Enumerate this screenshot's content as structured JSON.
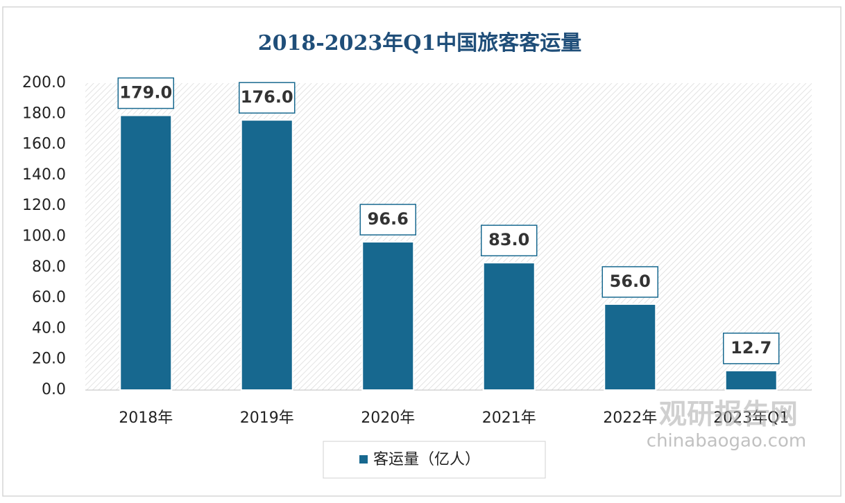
{
  "chart_data": {
    "type": "bar",
    "title": "2018-2023年Q1中国旅客客运量",
    "categories": [
      "2018年",
      "2019年",
      "2020年",
      "2021年",
      "2022年",
      "2023年Q1"
    ],
    "series": [
      {
        "name": "客运量（亿人）",
        "color": "#17688f",
        "values": [
          179,
          176,
          96.6,
          83,
          56,
          12.7
        ],
        "value_labels": [
          "179.0",
          "176.0",
          "96.6",
          "83.0",
          "56.0",
          "12.7"
        ]
      }
    ],
    "ylim": [
      0,
      200
    ],
    "yticks": [
      {
        "value": 0,
        "label": "0.0"
      },
      {
        "value": 20,
        "label": "20.0"
      },
      {
        "value": 40,
        "label": "40.0"
      },
      {
        "value": 60,
        "label": "60.0"
      },
      {
        "value": 80,
        "label": "80.0"
      },
      {
        "value": 100,
        "label": "100.0"
      },
      {
        "value": 120,
        "label": "120.0"
      },
      {
        "value": 140,
        "label": "140.0"
      },
      {
        "value": 160,
        "label": "160.0"
      },
      {
        "value": 180,
        "label": "180.0"
      },
      {
        "value": 200,
        "label": "200.0"
      }
    ],
    "legend": "bottom",
    "annotations": [
      "观研报告网",
      "chinabaogao.com"
    ]
  }
}
